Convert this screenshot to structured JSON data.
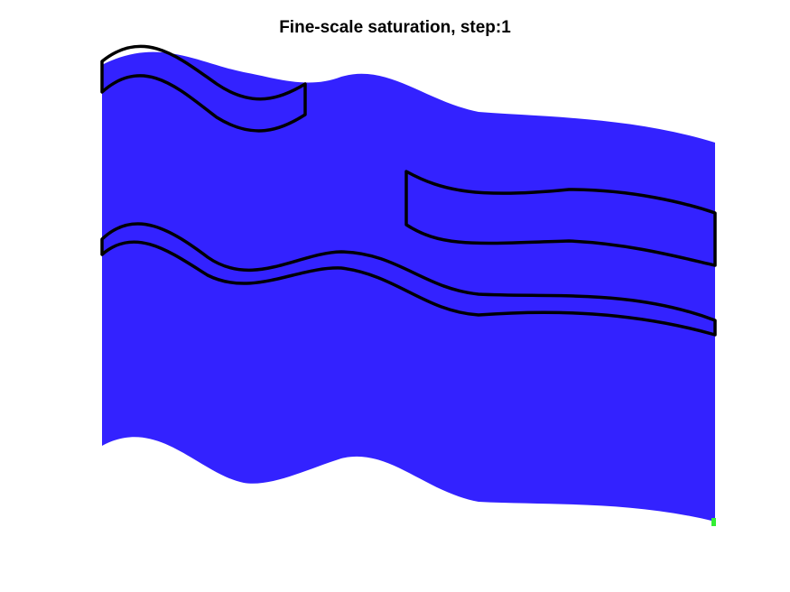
{
  "title": "Fine-scale saturation, step:1",
  "colors": {
    "domain_fill": "#3322ff",
    "outline": "#000000",
    "injector_marker": "#33ee33",
    "background": "#ffffff"
  }
}
